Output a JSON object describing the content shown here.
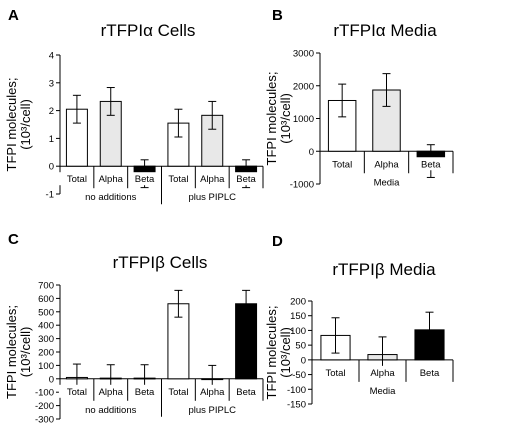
{
  "chart_data": [
    {
      "panel": "A",
      "type": "bar",
      "title": "rTFPIα Cells",
      "ylabel": "TFPI molecules;\n(10³/cell)",
      "ylim": [
        -1,
        4
      ],
      "yticks": [
        -1,
        0,
        1,
        2,
        3,
        4
      ],
      "categories": [
        "Total",
        "Alpha",
        "Beta",
        "Total",
        "Alpha",
        "Beta"
      ],
      "groups": [
        {
          "label": "no additions",
          "count": 3
        },
        {
          "label": "plus PIPLC",
          "count": 3
        }
      ],
      "values": [
        2.05,
        2.33,
        -0.27,
        1.55,
        1.83,
        -0.27
      ],
      "errors": [
        0.5,
        0.5,
        0.5,
        0.5,
        0.5,
        0.5
      ],
      "bar_colors": [
        "#ffffff",
        "#e8e8e8",
        "#000000",
        "#ffffff",
        "#e8e8e8",
        "#000000"
      ]
    },
    {
      "panel": "B",
      "type": "bar",
      "title": "rTFPIα Media",
      "ylabel": "TFPI molecules;\n(10³/cell)",
      "ylim": [
        -1000,
        3000
      ],
      "yticks": [
        -1000,
        0,
        1000,
        2000,
        3000
      ],
      "categories": [
        "Total",
        "Alpha",
        "Beta"
      ],
      "groups": [
        {
          "label": "Media",
          "count": 3
        }
      ],
      "values": [
        1550,
        1870,
        -300
      ],
      "errors": [
        500,
        500,
        500
      ],
      "bar_colors": [
        "#ffffff",
        "#e8e8e8",
        "#000000"
      ]
    },
    {
      "panel": "C",
      "type": "bar",
      "title": "rTFPIβ Cells",
      "ylabel": "TFPI molecules;\n(10³/cell)",
      "ylim": [
        -300,
        700
      ],
      "yticks": [
        -300,
        -200,
        -100,
        0,
        100,
        200,
        300,
        400,
        500,
        600,
        700
      ],
      "categories": [
        "Total",
        "Alpha",
        "Beta",
        "Total",
        "Alpha",
        "Beta"
      ],
      "groups": [
        {
          "label": "no additions",
          "count": 3
        },
        {
          "label": "plus PIPLC",
          "count": 3
        }
      ],
      "values": [
        10,
        5,
        5,
        560,
        0,
        560
      ],
      "errors": [
        100,
        100,
        100,
        100,
        100,
        100
      ],
      "bar_colors": [
        "#ffffff",
        "#e8e8e8",
        "#000000",
        "#ffffff",
        "#e8e8e8",
        "#000000"
      ]
    },
    {
      "panel": "D",
      "type": "bar",
      "title": "rTFPIβ Media",
      "ylabel": "TFPI molecules;\n(10³/cell)",
      "ylim": [
        -150,
        200
      ],
      "yticks": [
        -150,
        -100,
        -50,
        0,
        50,
        100,
        150,
        200
      ],
      "categories": [
        "Total",
        "Alpha",
        "Beta"
      ],
      "groups": [
        {
          "label": "Media",
          "count": 3
        }
      ],
      "values": [
        83,
        18,
        102
      ],
      "errors": [
        60,
        60,
        60
      ],
      "bar_colors": [
        "#ffffff",
        "#e8e8e8",
        "#000000"
      ]
    }
  ]
}
